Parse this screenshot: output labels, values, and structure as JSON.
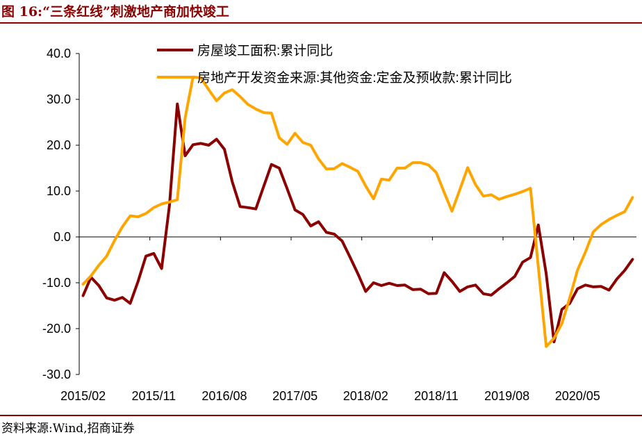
{
  "figure": {
    "title": "图 16:“三条红线”刺激地产商加快竣工",
    "source": "资料来源:Wind,招商证券"
  },
  "colors": {
    "series1": "#8B0000",
    "series2": "#FFA500",
    "axis": "#000000",
    "title": "#8B0000"
  },
  "chart_data": {
    "type": "line",
    "title": "",
    "xlabel": "",
    "ylabel": "",
    "ylim": [
      -30,
      40
    ],
    "yticks": [
      "40.0",
      "30.0",
      "20.0",
      "10.0",
      "0.0",
      "-10.0",
      "-20.0",
      "-30.0"
    ],
    "xticks": [
      "2015/02",
      "2015/11",
      "2016/08",
      "2017/05",
      "2018/02",
      "2018/11",
      "2019/08",
      "2020/05"
    ],
    "grid": false,
    "legend": "top",
    "series": [
      {
        "name": "房屋竣工面积:累计同比",
        "color": "#8B0000",
        "points": [
          [
            "2015/02",
            -12.8
          ],
          [
            "2015/03",
            -8.8
          ],
          [
            "2015/04",
            -10.6
          ],
          [
            "2015/05",
            -13.3
          ],
          [
            "2015/06",
            -13.8
          ],
          [
            "2015/07",
            -13.2
          ],
          [
            "2015/08",
            -14.5
          ],
          [
            "2015/09",
            -9.7
          ],
          [
            "2015/10",
            -4.2
          ],
          [
            "2015/11",
            -3.6
          ],
          [
            "2015/12",
            -6.9
          ],
          [
            "2016/01",
            6.9
          ],
          [
            "2016/02",
            29.0
          ],
          [
            "2016/03",
            17.7
          ],
          [
            "2016/04",
            20.1
          ],
          [
            "2016/05",
            20.4
          ],
          [
            "2016/06",
            20.0
          ],
          [
            "2016/07",
            21.3
          ],
          [
            "2016/08",
            19.1
          ],
          [
            "2016/09",
            12.0
          ],
          [
            "2016/10",
            6.6
          ],
          [
            "2016/11",
            6.4
          ],
          [
            "2016/12",
            6.1
          ],
          [
            "2017/01",
            11.0
          ],
          [
            "2017/02",
            15.8
          ],
          [
            "2017/03",
            15.0
          ],
          [
            "2017/04",
            10.5
          ],
          [
            "2017/05",
            5.9
          ],
          [
            "2017/06",
            4.9
          ],
          [
            "2017/07",
            2.4
          ],
          [
            "2017/08",
            3.3
          ],
          [
            "2017/09",
            1.0
          ],
          [
            "2017/10",
            0.6
          ],
          [
            "2017/11",
            -0.9
          ],
          [
            "2017/12",
            -4.4
          ],
          [
            "2018/01",
            -8.0
          ],
          [
            "2018/02",
            -11.9
          ],
          [
            "2018/03",
            -10.0
          ],
          [
            "2018/04",
            -10.6
          ],
          [
            "2018/05",
            -10.1
          ],
          [
            "2018/06",
            -10.6
          ],
          [
            "2018/07",
            -10.5
          ],
          [
            "2018/08",
            -11.5
          ],
          [
            "2018/09",
            -11.4
          ],
          [
            "2018/10",
            -12.4
          ],
          [
            "2018/11",
            -12.3
          ],
          [
            "2018/12",
            -7.8
          ],
          [
            "2019/01",
            -9.7
          ],
          [
            "2019/02",
            -11.9
          ],
          [
            "2019/03",
            -10.9
          ],
          [
            "2019/04",
            -10.5
          ],
          [
            "2019/05",
            -12.4
          ],
          [
            "2019/06",
            -12.7
          ],
          [
            "2019/07",
            -11.3
          ],
          [
            "2019/08",
            -10.0
          ],
          [
            "2019/09",
            -8.6
          ],
          [
            "2019/10",
            -5.5
          ],
          [
            "2019/11",
            -4.5
          ],
          [
            "2019/12",
            2.6
          ],
          [
            "2020/01",
            -8.0
          ],
          [
            "2020/02",
            -22.9
          ],
          [
            "2020/03",
            -15.8
          ],
          [
            "2020/04",
            -14.5
          ],
          [
            "2020/05",
            -11.3
          ],
          [
            "2020/06",
            -10.5
          ],
          [
            "2020/07",
            -10.9
          ],
          [
            "2020/08",
            -10.8
          ],
          [
            "2020/09",
            -11.6
          ],
          [
            "2020/10",
            -9.2
          ],
          [
            "2020/11",
            -7.3
          ],
          [
            "2020/12",
            -4.9
          ]
        ]
      },
      {
        "name": "房地产开发资金来源:其他资金:定金及预收款:累计同比",
        "color": "#FFA500",
        "points": [
          [
            "2015/02",
            -10.3
          ],
          [
            "2015/03",
            -8.5
          ],
          [
            "2015/04",
            -6.2
          ],
          [
            "2015/05",
            -4.2
          ],
          [
            "2015/06",
            -0.8
          ],
          [
            "2015/07",
            2.2
          ],
          [
            "2015/08",
            4.6
          ],
          [
            "2015/09",
            4.4
          ],
          [
            "2015/10",
            5.1
          ],
          [
            "2015/11",
            6.4
          ],
          [
            "2015/12",
            7.2
          ],
          [
            "2016/01",
            7.6
          ],
          [
            "2016/02",
            8.1
          ],
          [
            "2016/03",
            26.0
          ],
          [
            "2016/04",
            34.9
          ],
          [
            "2016/05",
            34.7
          ],
          [
            "2016/06",
            32.1
          ],
          [
            "2016/07",
            29.7
          ],
          [
            "2016/08",
            31.4
          ],
          [
            "2016/09",
            32.1
          ],
          [
            "2016/10",
            30.6
          ],
          [
            "2016/11",
            28.9
          ],
          [
            "2016/12",
            27.9
          ],
          [
            "2017/01",
            27.1
          ],
          [
            "2017/02",
            27.0
          ],
          [
            "2017/03",
            21.6
          ],
          [
            "2017/04",
            20.2
          ],
          [
            "2017/05",
            22.6
          ],
          [
            "2017/06",
            20.6
          ],
          [
            "2017/07",
            20.0
          ],
          [
            "2017/08",
            17.0
          ],
          [
            "2017/09",
            14.8
          ],
          [
            "2017/10",
            14.9
          ],
          [
            "2017/11",
            16.0
          ],
          [
            "2017/12",
            15.2
          ],
          [
            "2018/01",
            14.3
          ],
          [
            "2018/02",
            11.1
          ],
          [
            "2018/03",
            8.3
          ],
          [
            "2018/04",
            12.6
          ],
          [
            "2018/05",
            12.4
          ],
          [
            "2018/06",
            15.0
          ],
          [
            "2018/07",
            15.0
          ],
          [
            "2018/08",
            16.2
          ],
          [
            "2018/09",
            16.2
          ],
          [
            "2018/10",
            15.7
          ],
          [
            "2018/11",
            14.0
          ],
          [
            "2018/12",
            9.7
          ],
          [
            "2019/01",
            5.6
          ],
          [
            "2019/02",
            10.3
          ],
          [
            "2019/03",
            15.1
          ],
          [
            "2019/04",
            11.4
          ],
          [
            "2019/05",
            8.9
          ],
          [
            "2019/06",
            9.2
          ],
          [
            "2019/07",
            8.2
          ],
          [
            "2019/08",
            8.8
          ],
          [
            "2019/09",
            9.3
          ],
          [
            "2019/10",
            9.9
          ],
          [
            "2019/11",
            10.6
          ],
          [
            "2019/12",
            -6.6
          ],
          [
            "2020/01",
            -23.9
          ],
          [
            "2020/02",
            -22.1
          ],
          [
            "2020/03",
            -18.9
          ],
          [
            "2020/04",
            -13.3
          ],
          [
            "2020/05",
            -7.2
          ],
          [
            "2020/06",
            -3.3
          ],
          [
            "2020/07",
            1.1
          ],
          [
            "2020/08",
            2.7
          ],
          [
            "2020/09",
            3.8
          ],
          [
            "2020/10",
            4.7
          ],
          [
            "2020/11",
            5.5
          ],
          [
            "2020/12",
            8.6
          ]
        ]
      }
    ]
  }
}
